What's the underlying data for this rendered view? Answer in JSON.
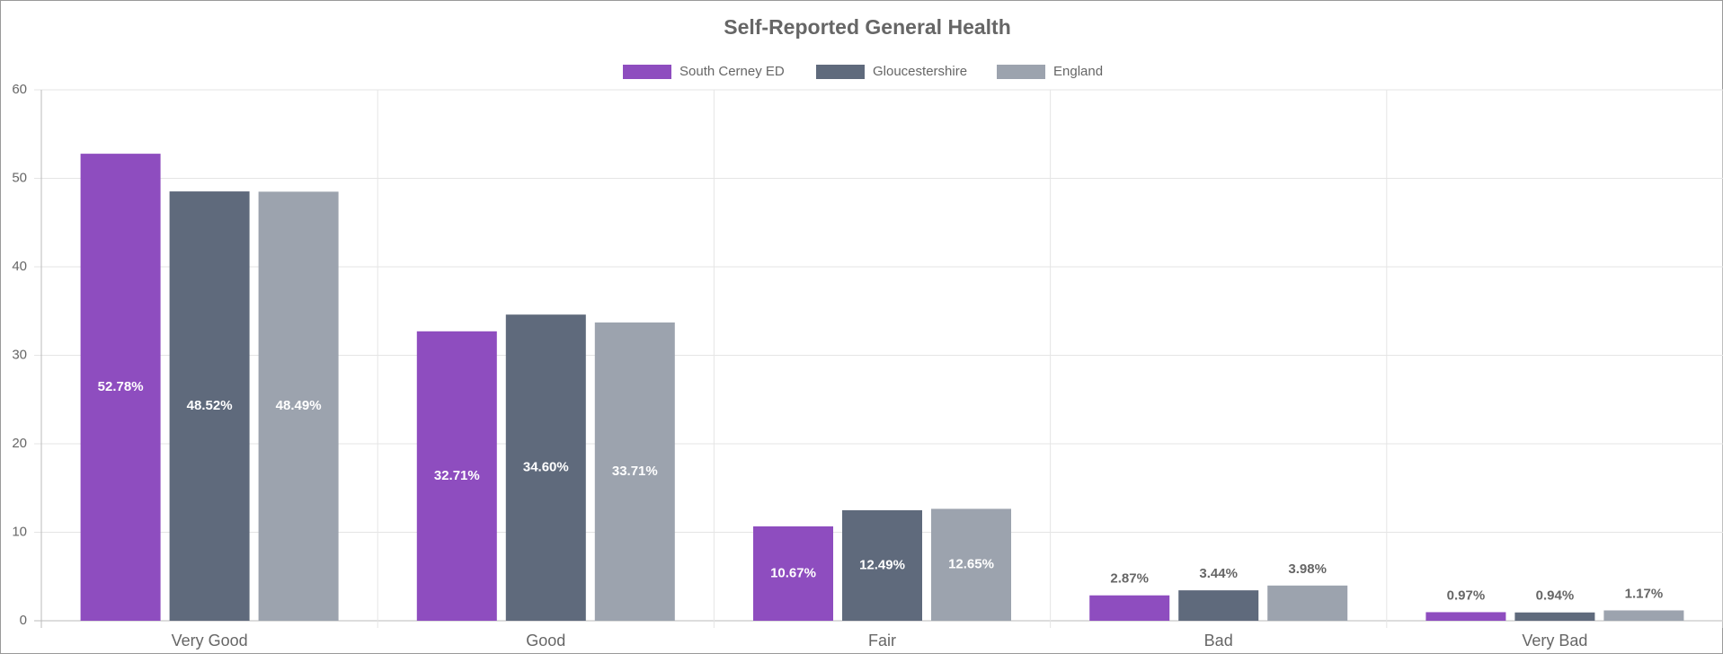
{
  "chart_data": {
    "type": "bar",
    "title": "Self-Reported General Health",
    "categories": [
      "Very Good",
      "Good",
      "Fair",
      "Bad",
      "Very Bad"
    ],
    "series": [
      {
        "name": "South Cerney ED",
        "color": "#8e4dbf",
        "values": [
          52.78,
          32.71,
          10.67,
          2.87,
          0.97
        ],
        "value_labels": [
          "52.78%",
          "32.71%",
          "10.67%",
          "2.87%",
          "0.97%"
        ]
      },
      {
        "name": "Gloucestershire",
        "color": "#5f6a7c",
        "values": [
          48.52,
          34.6,
          12.49,
          3.44,
          0.94
        ],
        "value_labels": [
          "48.52%",
          "34.60%",
          "12.49%",
          "3.44%",
          "0.94%"
        ]
      },
      {
        "name": "England",
        "color": "#9ca3ae",
        "values": [
          48.49,
          33.71,
          12.65,
          3.98,
          1.17
        ],
        "value_labels": [
          "48.49%",
          "33.71%",
          "12.65%",
          "3.98%",
          "1.17%"
        ]
      }
    ],
    "ylim": [
      0,
      60
    ],
    "yticks": [
      0,
      10,
      20,
      30,
      40,
      50,
      60
    ],
    "grid": true,
    "legend": "top"
  }
}
